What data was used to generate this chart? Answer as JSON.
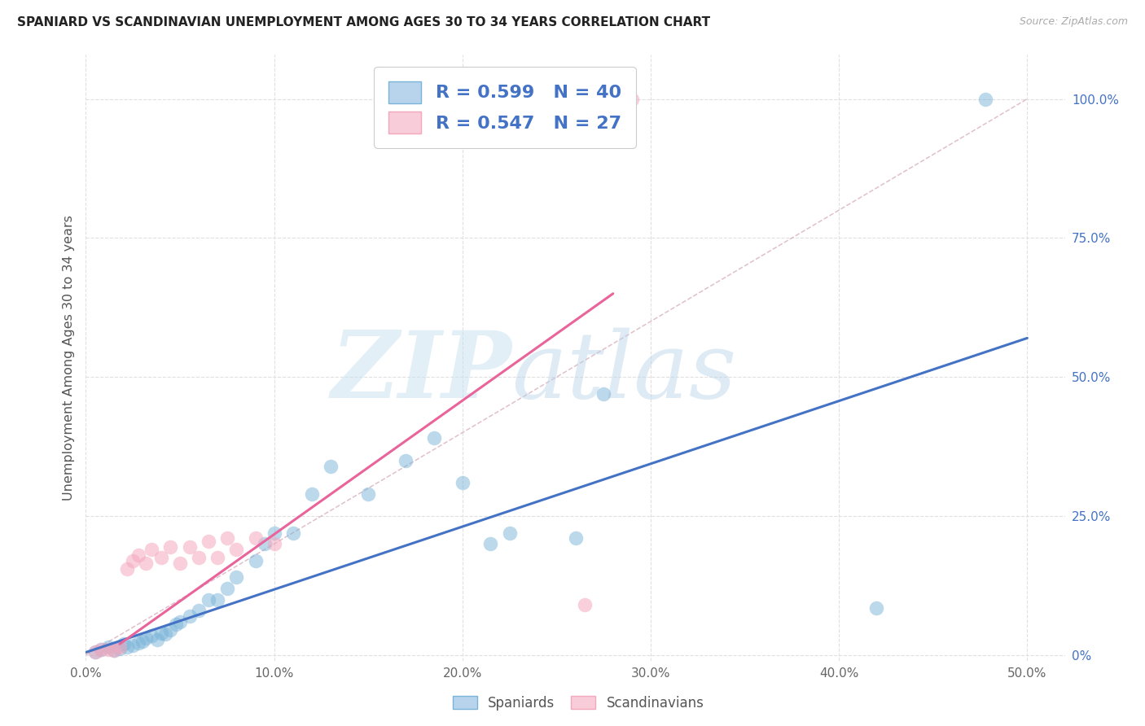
{
  "title": "SPANIARD VS SCANDINAVIAN UNEMPLOYMENT AMONG AGES 30 TO 34 YEARS CORRELATION CHART",
  "source": "Source: ZipAtlas.com",
  "ylabel": "Unemployment Among Ages 30 to 34 years",
  "xlim": [
    0.0,
    0.52
  ],
  "ylim": [
    -0.01,
    1.08
  ],
  "plot_xlim": [
    0.0,
    0.5
  ],
  "plot_ylim": [
    0.0,
    1.0
  ],
  "xticks": [
    0.0,
    0.1,
    0.2,
    0.3,
    0.4,
    0.5
  ],
  "xticklabels": [
    "0.0%",
    "10.0%",
    "20.0%",
    "30.0%",
    "40.0%",
    "50.0%"
  ],
  "yticks": [
    0.0,
    0.25,
    0.5,
    0.75,
    1.0
  ],
  "yticklabels_right": [
    "0%",
    "25.0%",
    "50.0%",
    "75.0%",
    "100.0%"
  ],
  "watermark_zip": "ZIP",
  "watermark_atlas": "atlas",
  "legend_blue_label": "R = 0.599   N = 40",
  "legend_pink_label": "R = 0.547   N = 27",
  "blue_color": "#7ab4d8",
  "pink_color": "#f4a8be",
  "blue_scatter_x": [
    0.005,
    0.008,
    0.012,
    0.015,
    0.018,
    0.02,
    0.022,
    0.025,
    0.028,
    0.03,
    0.032,
    0.035,
    0.038,
    0.04,
    0.042,
    0.045,
    0.048,
    0.05,
    0.055,
    0.06,
    0.065,
    0.07,
    0.075,
    0.08,
    0.09,
    0.095,
    0.1,
    0.11,
    0.12,
    0.13,
    0.15,
    0.17,
    0.185,
    0.2,
    0.215,
    0.225,
    0.26,
    0.275,
    0.42,
    0.478
  ],
  "blue_scatter_y": [
    0.005,
    0.01,
    0.015,
    0.008,
    0.012,
    0.02,
    0.015,
    0.018,
    0.022,
    0.025,
    0.03,
    0.035,
    0.028,
    0.04,
    0.038,
    0.045,
    0.055,
    0.06,
    0.07,
    0.08,
    0.1,
    0.1,
    0.12,
    0.14,
    0.17,
    0.2,
    0.22,
    0.22,
    0.29,
    0.34,
    0.29,
    0.35,
    0.39,
    0.31,
    0.2,
    0.22,
    0.21,
    0.47,
    0.085,
    1.0
  ],
  "pink_scatter_x": [
    0.005,
    0.008,
    0.012,
    0.015,
    0.018,
    0.022,
    0.025,
    0.028,
    0.032,
    0.035,
    0.04,
    0.045,
    0.05,
    0.055,
    0.06,
    0.065,
    0.07,
    0.075,
    0.08,
    0.09,
    0.1,
    0.17,
    0.22,
    0.225,
    0.23,
    0.265,
    0.29
  ],
  "pink_scatter_y": [
    0.005,
    0.01,
    0.01,
    0.008,
    0.015,
    0.155,
    0.17,
    0.18,
    0.165,
    0.19,
    0.175,
    0.195,
    0.165,
    0.195,
    0.175,
    0.205,
    0.175,
    0.21,
    0.19,
    0.21,
    0.2,
    1.0,
    1.0,
    1.0,
    1.0,
    0.09,
    1.0
  ],
  "blue_line_x": [
    0.0,
    0.5
  ],
  "blue_line_y": [
    0.005,
    0.57
  ],
  "pink_line_x": [
    0.018,
    0.28
  ],
  "pink_line_y": [
    0.02,
    0.65
  ],
  "diag_line_x": [
    0.0,
    0.5
  ],
  "diag_line_y": [
    0.0,
    1.0
  ]
}
